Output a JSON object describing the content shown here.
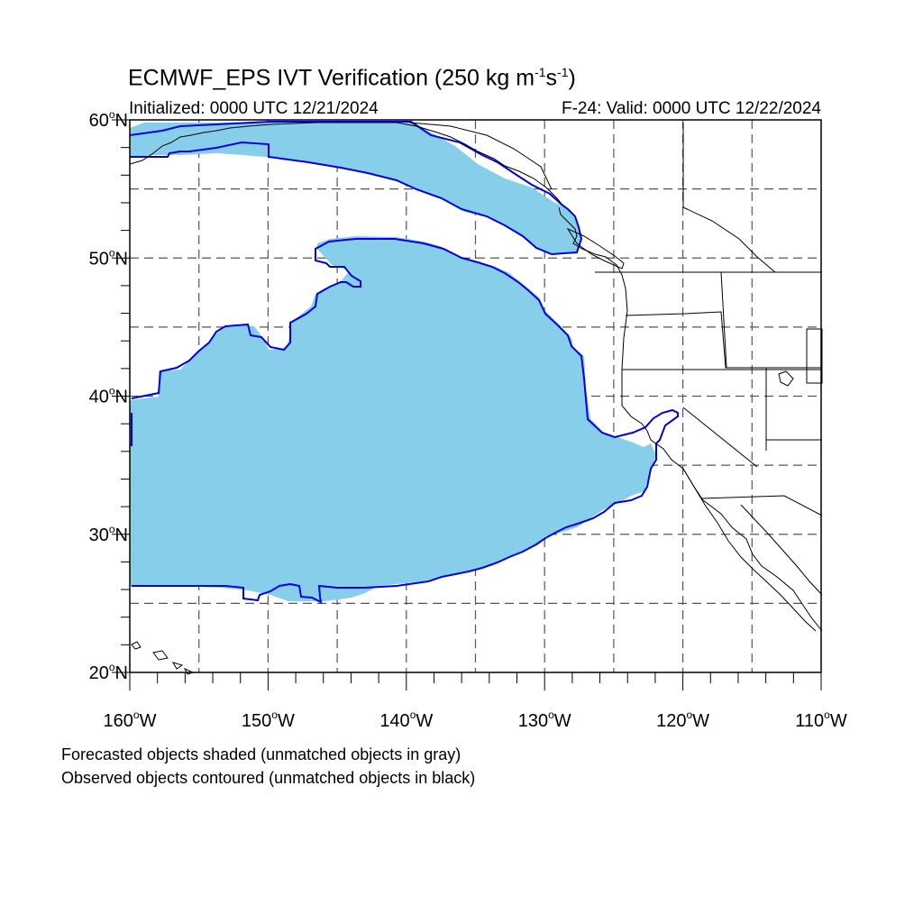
{
  "title": {
    "prefix": "ECMWF_EPS IVT Verification (250 kg m",
    "exp1": "-1",
    "middle": "s",
    "exp2": "-1",
    "suffix": ")"
  },
  "subtitle": {
    "initialized": "Initialized: 0000 UTC 12/21/2024",
    "valid": "F-24: Valid: 0000 UTC 12/22/2024"
  },
  "map": {
    "lon_range": [
      -160,
      -110
    ],
    "lat_range": [
      20,
      60
    ],
    "lat_labels": [
      {
        "lat": 60,
        "num": "60",
        "deg": "o",
        "hemi": "N"
      },
      {
        "lat": 50,
        "num": "50",
        "deg": "o",
        "hemi": "N"
      },
      {
        "lat": 40,
        "num": "40",
        "deg": "o",
        "hemi": "N"
      },
      {
        "lat": 30,
        "num": "30",
        "deg": "o",
        "hemi": "N"
      },
      {
        "lat": 20,
        "num": "20",
        "deg": "o",
        "hemi": "N"
      }
    ],
    "lon_labels": [
      {
        "lon": -160,
        "num": "160",
        "deg": "o",
        "hemi": "W"
      },
      {
        "lon": -150,
        "num": "150",
        "deg": "o",
        "hemi": "W"
      },
      {
        "lon": -140,
        "num": "140",
        "deg": "o",
        "hemi": "W"
      },
      {
        "lon": -130,
        "num": "130",
        "deg": "o",
        "hemi": "W"
      },
      {
        "lon": -120,
        "num": "120",
        "deg": "o",
        "hemi": "W"
      },
      {
        "lon": -110,
        "num": "110",
        "deg": "o",
        "hemi": "W"
      }
    ],
    "gridline_lats": [
      25,
      30,
      35,
      40,
      45,
      50,
      55
    ],
    "gridline_lons": [
      -155,
      -150,
      -145,
      -140,
      -135,
      -130,
      -125,
      -120,
      -115
    ],
    "forecast_fill_color": "#87ceeb",
    "observed_contour_color": "#0000e6",
    "coast_color": "#000000",
    "gridline_color": "#555555"
  },
  "captions": {
    "line1": "Forecasted objects shaded (unmatched objects in gray)",
    "line2": "Observed objects contoured (unmatched objects in black)"
  }
}
